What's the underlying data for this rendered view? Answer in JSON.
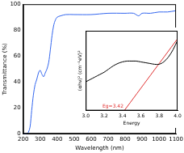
{
  "chart_data": [
    {
      "type": "line",
      "x_label": "Wavelength (nm)",
      "y_label": "Transmittance (%)",
      "x": [
        200,
        220,
        230,
        240,
        250,
        260,
        270,
        280,
        290,
        300,
        310,
        320,
        330,
        340,
        350,
        360,
        370,
        380,
        390,
        400,
        420,
        450,
        500,
        600,
        700,
        800,
        850,
        880,
        900,
        950,
        1000,
        1050,
        1100
      ],
      "series": [
        {
          "color": "#3366ee",
          "values": [
            0,
            0,
            1,
            5,
            18,
            30,
            38,
            42,
            47,
            49,
            46,
            44,
            47,
            50,
            55,
            65,
            76,
            84,
            88,
            90,
            91,
            92,
            92,
            92,
            93,
            93,
            93,
            91,
            93,
            93,
            94,
            94,
            95
          ]
        }
      ],
      "xlim": [
        200,
        1100
      ],
      "xticks": [
        200,
        300,
        400,
        500,
        600,
        700,
        800,
        900,
        1000,
        1100
      ],
      "ylim": [
        0,
        100
      ],
      "yticks": [
        0,
        20,
        40,
        60,
        80,
        100
      ],
      "grid": false
    },
    {
      "type": "line",
      "x_label": "Energy",
      "y_label": "(αhν)² (cm⁻¹eV)²",
      "annotation": "Eg=3.42",
      "series": [
        {
          "color": "#000000",
          "x": [
            3.0,
            3.05,
            3.1,
            3.15,
            3.2,
            3.25,
            3.3,
            3.35,
            3.4,
            3.45,
            3.5,
            3.55,
            3.6,
            3.65,
            3.7,
            3.75,
            3.8,
            3.85,
            3.9,
            3.95,
            4.0
          ],
          "values": [
            0.36,
            0.39,
            0.42,
            0.45,
            0.48,
            0.52,
            0.56,
            0.59,
            0.61,
            0.62,
            0.62,
            0.62,
            0.61,
            0.6,
            0.59,
            0.58,
            0.58,
            0.61,
            0.67,
            0.76,
            0.88
          ]
        },
        {
          "color": "#e03030",
          "x": [
            3.42,
            4.0
          ],
          "values": [
            0,
            0.9
          ]
        }
      ],
      "xlim": [
        3.0,
        4.0
      ],
      "xticks": [
        {
          "value": 3.0,
          "label": "3.0"
        },
        3.2,
        3.4,
        3.6,
        3.8,
        {
          "value": 4.0,
          "label": "4.0"
        }
      ],
      "ylim": [
        0,
        1
      ],
      "tick_labels": "x",
      "grid": false
    }
  ]
}
